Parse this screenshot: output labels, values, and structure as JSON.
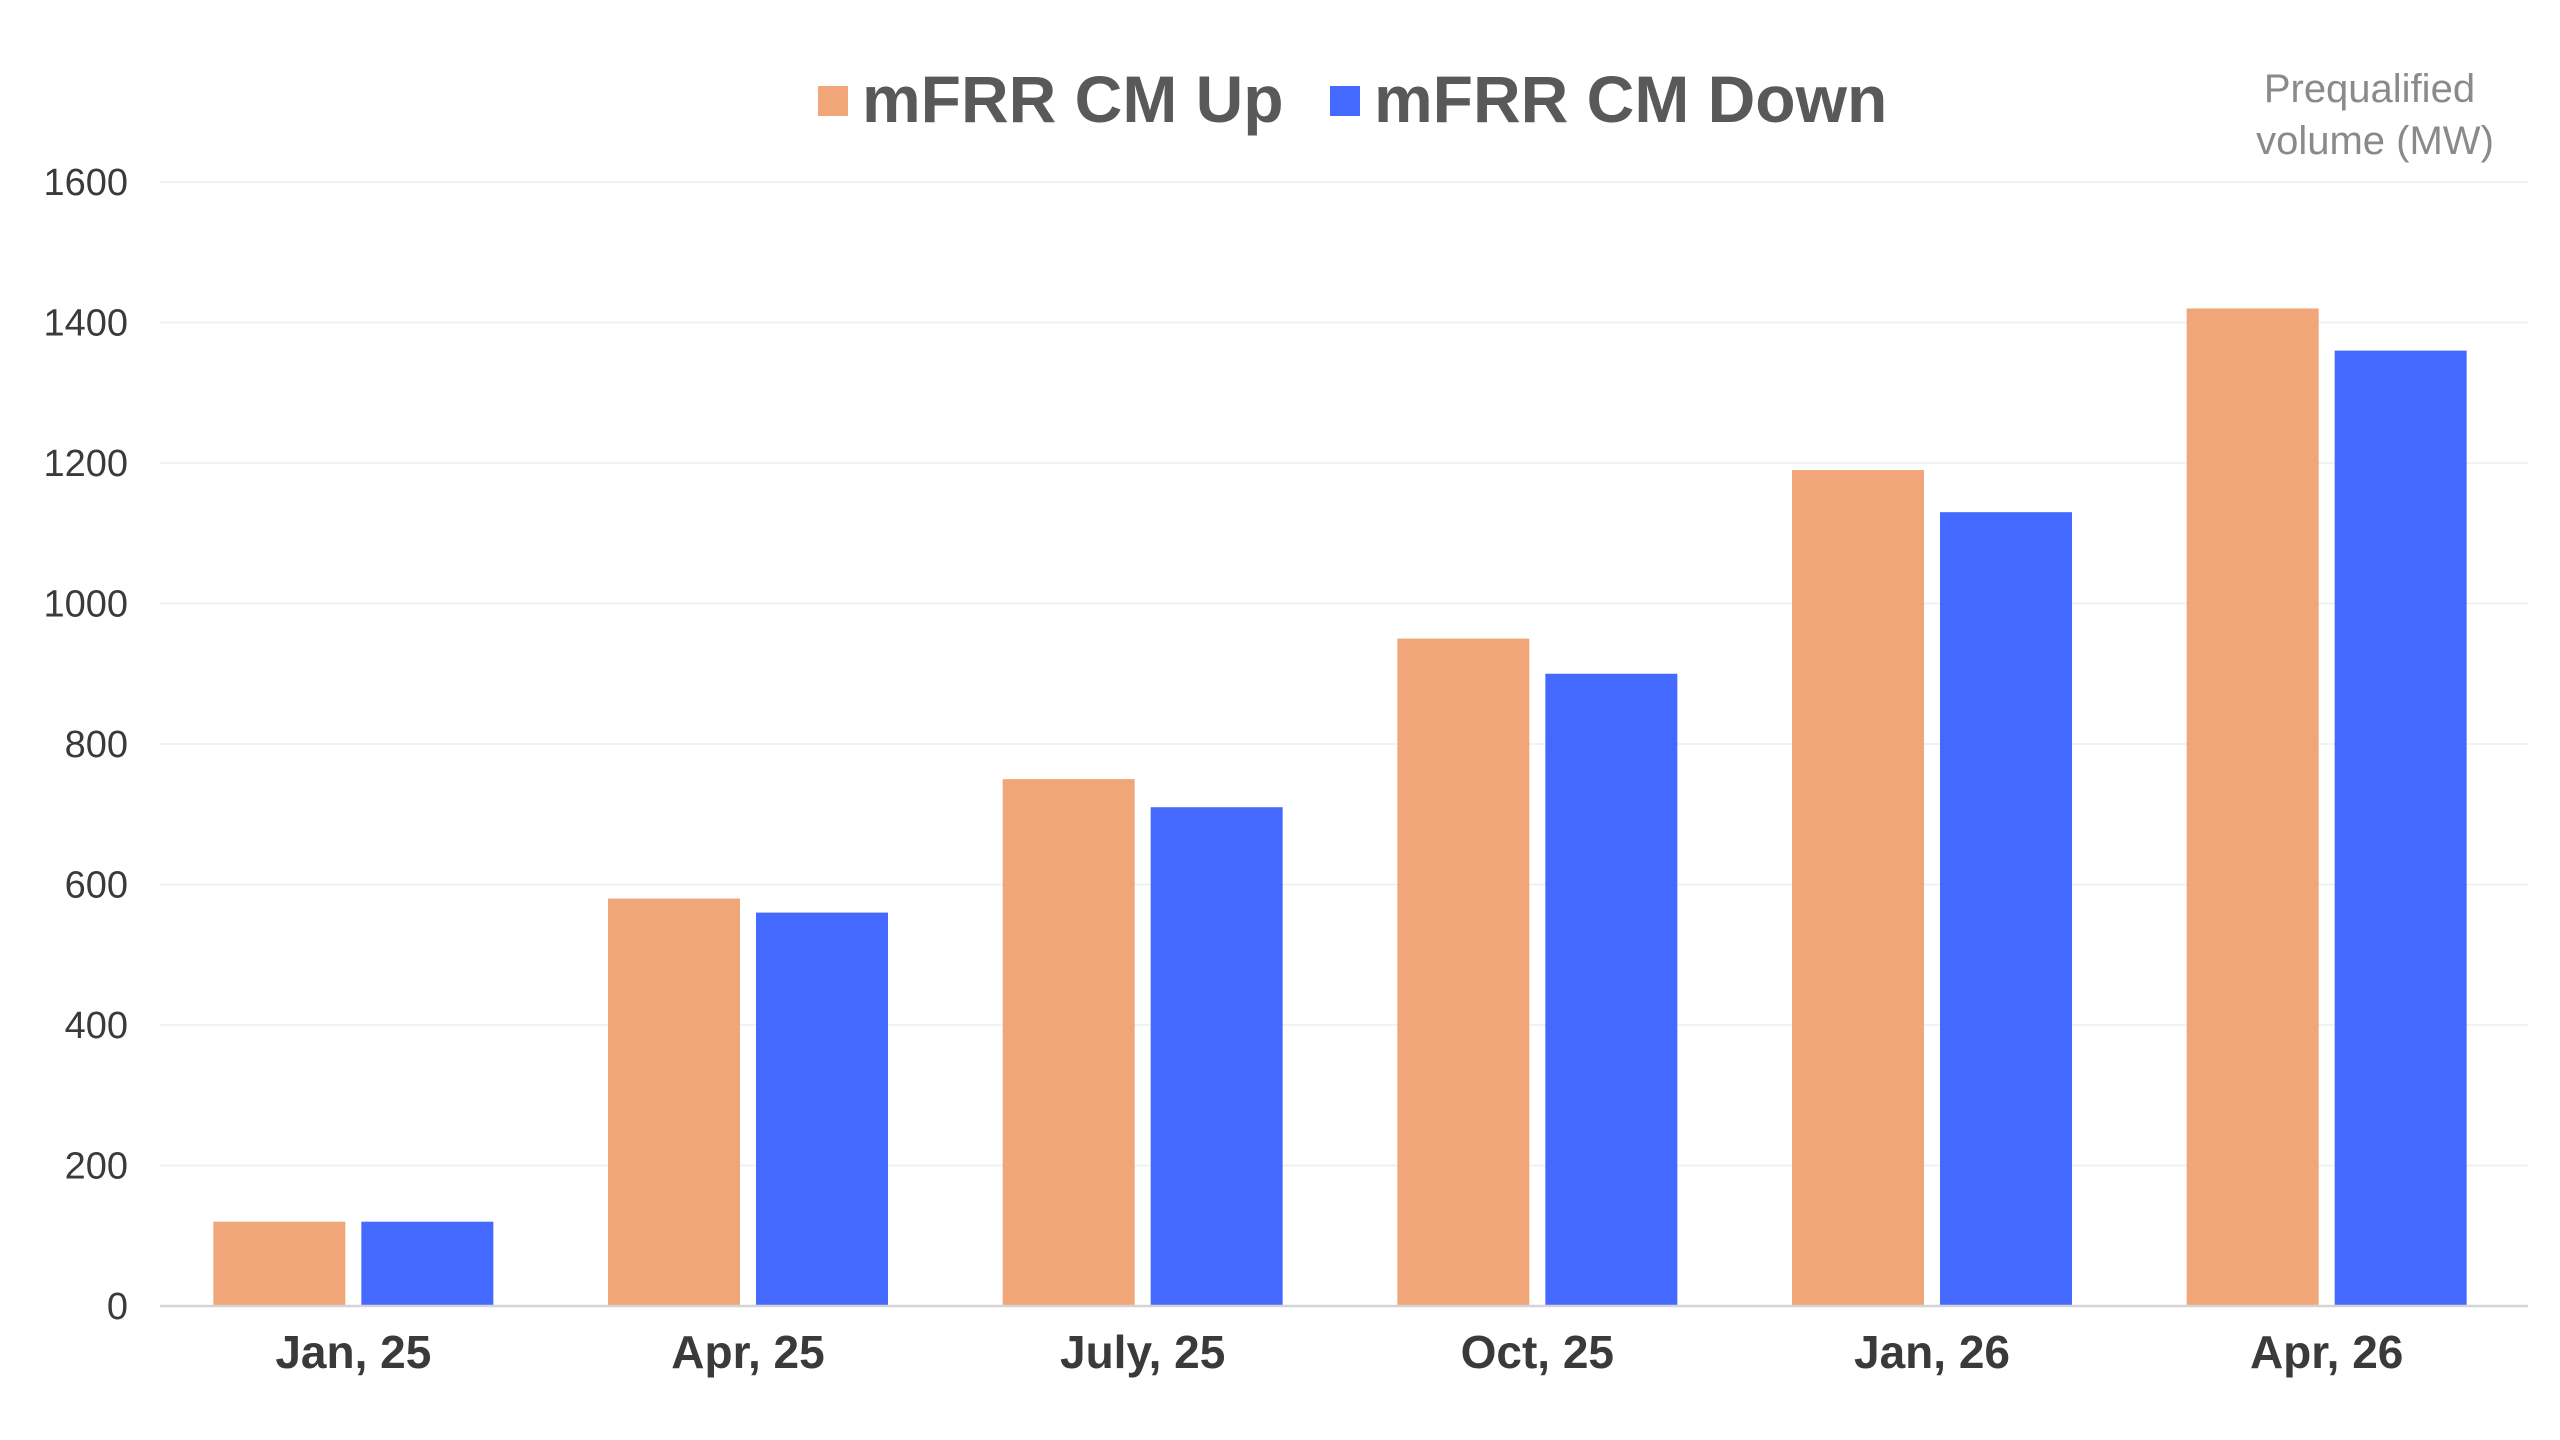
{
  "chart_data": {
    "type": "bar",
    "title": "",
    "xlabel": "",
    "ylabel": "",
    "unit_label_lines": [
      "Prequalified",
      "volume (MW)"
    ],
    "categories": [
      "Jan, 25",
      "Apr, 25",
      "July, 25",
      "Oct, 25",
      "Jan, 26",
      "Apr, 26"
    ],
    "series": [
      {
        "name": "mFRR CM Up",
        "color": "#f0a679",
        "values": [
          120,
          580,
          750,
          950,
          1190,
          1420
        ]
      },
      {
        "name": "mFRR CM Down",
        "color": "#4469ff",
        "values": [
          120,
          560,
          710,
          900,
          1130,
          1360
        ]
      }
    ],
    "ylim": [
      0,
      1600
    ],
    "yticks": [
      0,
      200,
      400,
      600,
      800,
      1000,
      1200,
      1400,
      1600
    ],
    "grid": true,
    "legend_position": "top-center"
  }
}
